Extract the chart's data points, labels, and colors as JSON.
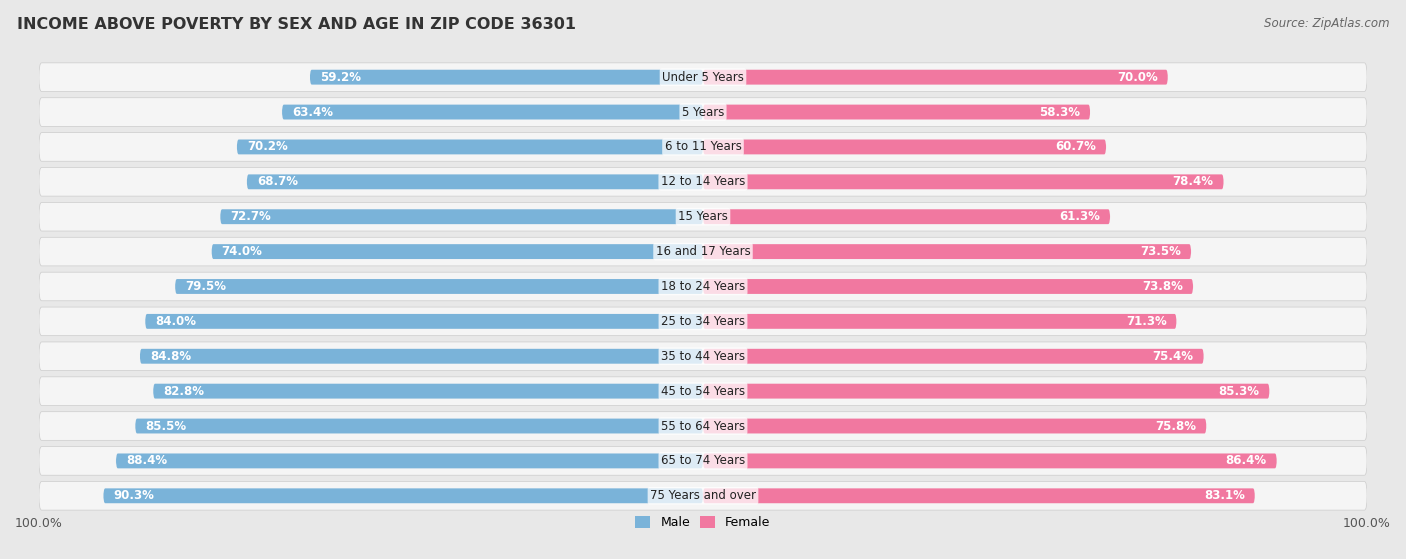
{
  "title": "INCOME ABOVE POVERTY BY SEX AND AGE IN ZIP CODE 36301",
  "source": "Source: ZipAtlas.com",
  "categories": [
    "Under 5 Years",
    "5 Years",
    "6 to 11 Years",
    "12 to 14 Years",
    "15 Years",
    "16 and 17 Years",
    "18 to 24 Years",
    "25 to 34 Years",
    "35 to 44 Years",
    "45 to 54 Years",
    "55 to 64 Years",
    "65 to 74 Years",
    "75 Years and over"
  ],
  "male_values": [
    59.2,
    63.4,
    70.2,
    68.7,
    72.7,
    74.0,
    79.5,
    84.0,
    84.8,
    82.8,
    85.5,
    88.4,
    90.3
  ],
  "female_values": [
    70.0,
    58.3,
    60.7,
    78.4,
    61.3,
    73.5,
    73.8,
    71.3,
    75.4,
    85.3,
    75.8,
    86.4,
    83.1
  ],
  "male_color": "#7ab3d9",
  "female_color": "#f178a0",
  "male_color_light": "#aacceb",
  "female_color_light": "#f8b8cb",
  "male_label": "Male",
  "female_label": "Female",
  "background_color": "#e8e8e8",
  "bar_row_color": "#f5f5f5",
  "max_value": 100.0,
  "title_fontsize": 11.5,
  "label_fontsize": 8.5,
  "tick_fontsize": 9,
  "source_fontsize": 8.5
}
